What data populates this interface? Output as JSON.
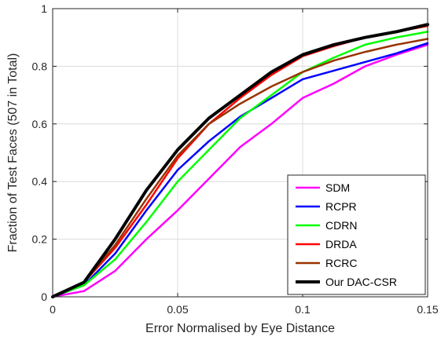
{
  "chart_data": {
    "type": "line",
    "title": "",
    "xlabel": "Error Normalised by Eye Distance",
    "ylabel": "Fraction of Test Faces (507 in Total)",
    "xlim": [
      0,
      0.15
    ],
    "ylim": [
      0,
      1
    ],
    "xticks": [
      0,
      0.05,
      0.1,
      0.15
    ],
    "xtick_labels": [
      "0",
      "0.05",
      "0.1",
      "0.15"
    ],
    "yticks": [
      0,
      0.2,
      0.4,
      0.6,
      0.8,
      1
    ],
    "ytick_labels": [
      "0",
      "0.2",
      "0.4",
      "0.6",
      "0.8",
      "1"
    ],
    "grid": true,
    "legend_position": "bottom-right",
    "series": [
      {
        "name": "SDM",
        "color": "#ff00ff",
        "x": [
          0,
          0.0125,
          0.025,
          0.0375,
          0.05,
          0.0625,
          0.075,
          0.0875,
          0.1,
          0.1125,
          0.125,
          0.1375,
          0.15
        ],
        "y": [
          0,
          0.02,
          0.09,
          0.2,
          0.3,
          0.41,
          0.52,
          0.6,
          0.69,
          0.74,
          0.8,
          0.84,
          0.875
        ]
      },
      {
        "name": "RCPR",
        "color": "#0000ff",
        "x": [
          0,
          0.0125,
          0.025,
          0.0375,
          0.05,
          0.0625,
          0.075,
          0.0875,
          0.1,
          0.1125,
          0.125,
          0.1375,
          0.15
        ],
        "y": [
          0,
          0.04,
          0.15,
          0.3,
          0.44,
          0.54,
          0.625,
          0.69,
          0.755,
          0.785,
          0.815,
          0.845,
          0.88
        ]
      },
      {
        "name": "CDRN",
        "color": "#00ff00",
        "x": [
          0,
          0.0125,
          0.025,
          0.0375,
          0.05,
          0.0625,
          0.075,
          0.0875,
          0.1,
          0.1125,
          0.125,
          0.1375,
          0.15
        ],
        "y": [
          0,
          0.04,
          0.13,
          0.26,
          0.4,
          0.51,
          0.62,
          0.7,
          0.78,
          0.83,
          0.875,
          0.9,
          0.92
        ]
      },
      {
        "name": "DRDA",
        "color": "#ff0000",
        "x": [
          0,
          0.0125,
          0.025,
          0.0375,
          0.05,
          0.0625,
          0.075,
          0.0875,
          0.1,
          0.1125,
          0.125,
          0.1375,
          0.15
        ],
        "y": [
          0,
          0.05,
          0.17,
          0.32,
          0.48,
          0.6,
          0.69,
          0.77,
          0.835,
          0.87,
          0.9,
          0.92,
          0.94
        ]
      },
      {
        "name": "RCRC",
        "color": "#993300",
        "x": [
          0,
          0.0125,
          0.025,
          0.0375,
          0.05,
          0.0625,
          0.075,
          0.0875,
          0.1,
          0.1125,
          0.125,
          0.1375,
          0.15
        ],
        "y": [
          0,
          0.05,
          0.18,
          0.34,
          0.49,
          0.6,
          0.67,
          0.73,
          0.78,
          0.82,
          0.85,
          0.875,
          0.895
        ]
      },
      {
        "name": "Our DAC-CSR",
        "color": "#000000",
        "x": [
          0,
          0.0125,
          0.025,
          0.0375,
          0.05,
          0.0625,
          0.075,
          0.0875,
          0.1,
          0.1125,
          0.125,
          0.1375,
          0.15
        ],
        "y": [
          0,
          0.05,
          0.2,
          0.37,
          0.51,
          0.62,
          0.7,
          0.78,
          0.84,
          0.875,
          0.9,
          0.92,
          0.945
        ]
      }
    ]
  }
}
